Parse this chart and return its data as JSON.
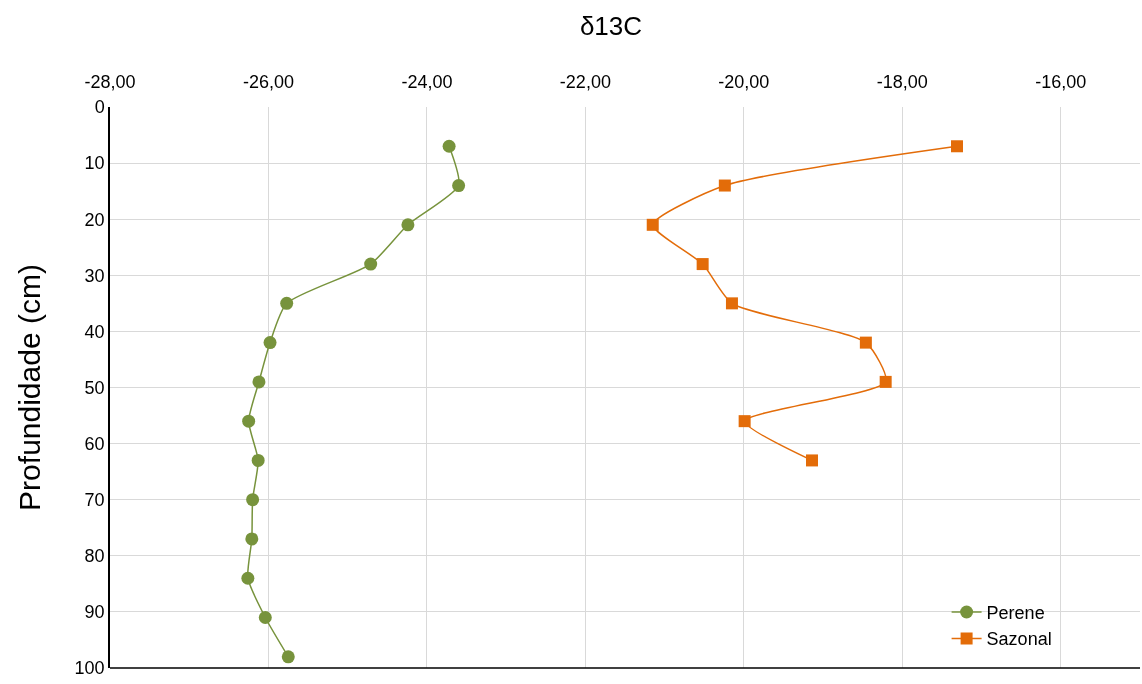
{
  "chart_data": {
    "type": "line",
    "title": "δ13C",
    "ylabel": "Profundidade (cm)",
    "xlim": [
      -28,
      -15
    ],
    "xticks": [
      {
        "value": -28,
        "label": "-28,00"
      },
      {
        "value": -26,
        "label": "-26,00"
      },
      {
        "value": -24,
        "label": "-24,00"
      },
      {
        "value": -22,
        "label": "-22,00"
      },
      {
        "value": -20,
        "label": "-20,00"
      },
      {
        "value": -18,
        "label": "-18,00"
      },
      {
        "value": -16,
        "label": "-16,00"
      }
    ],
    "ylim": [
      100,
      0
    ],
    "yticks": [
      0,
      10,
      20,
      30,
      40,
      50,
      60,
      70,
      80,
      90,
      100
    ],
    "grid": true,
    "legend": "bottom right",
    "series": [
      {
        "name": "Perene",
        "color": "#77933c",
        "marker": "circle",
        "x": [
          -23.72,
          -23.6,
          -24.24,
          -24.71,
          -25.77,
          -25.98,
          -26.12,
          -26.25,
          -26.13,
          -26.2,
          -26.21,
          -26.26,
          -26.04,
          -25.75
        ],
        "values": [
          7,
          14,
          21,
          28,
          35,
          42,
          49,
          56,
          63,
          70,
          77,
          84,
          91,
          98
        ]
      },
      {
        "name": "Sazonal",
        "color": "#e36c09",
        "marker": "square",
        "x": [
          -17.31,
          -20.24,
          -21.15,
          -20.52,
          -20.15,
          -18.46,
          -18.21,
          -19.99,
          -19.14
        ],
        "values": [
          7,
          14,
          21,
          28,
          35,
          42,
          49,
          56,
          63
        ]
      }
    ]
  }
}
